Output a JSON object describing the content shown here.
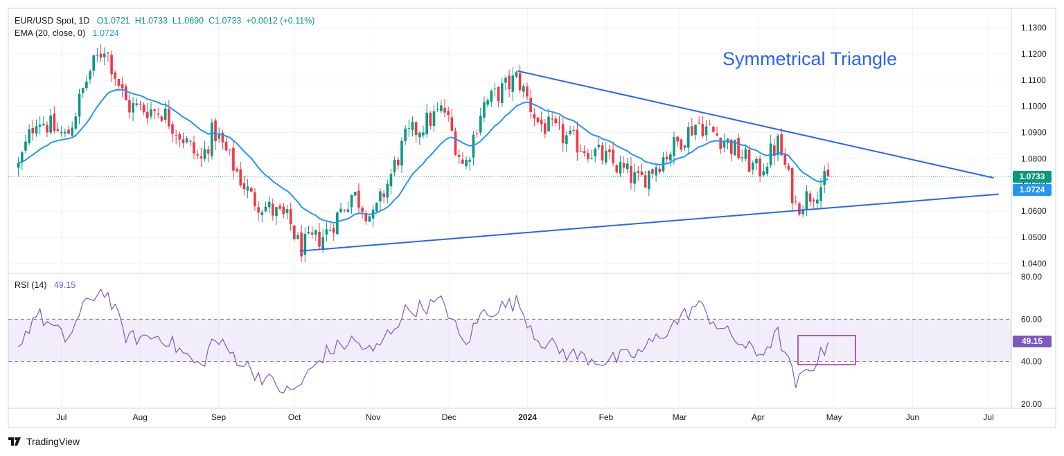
{
  "header": {
    "symbol": "EUR/USD Spot, 1D",
    "open": "O1.0721",
    "high": "H1.0733",
    "low": "L1.0690",
    "close": "C1.0733",
    "change": "+0.0012 (+0.11%)",
    "ema_label": "EMA (20, close, 0)",
    "ema_value": "1.0724",
    "rsi_label": "RSI (14)",
    "rsi_value": "49.15"
  },
  "annotation": "Symmetrical Triangle",
  "branding": "TradingView",
  "price_tags": {
    "last_price": "1.0733",
    "ema": "1.0724",
    "rsi": "49.15"
  },
  "colors": {
    "up": "#089981",
    "down": "#f23645",
    "ema": "#2196f3",
    "rsi": "#7e57c2",
    "trendline": "#2962ff"
  },
  "chart_data": [
    {
      "type": "candlestick",
      "yticks": [
        "1.1300",
        "1.1200",
        "1.1100",
        "1.1000",
        "1.0900",
        "1.0800",
        "1.0700",
        "1.0600",
        "1.0500",
        "1.0400"
      ],
      "ylim": [
        1.035,
        1.135
      ],
      "xticks": [
        "Jul",
        "Aug",
        "Sep",
        "Oct",
        "Nov",
        "Dec",
        "2024",
        "Feb",
        "Mar",
        "Apr",
        "May",
        "Jun",
        "Jul"
      ],
      "monthly_path": [
        {
          "date": "2023-06-14",
          "close": 1.077
        },
        {
          "date": "2023-06-21",
          "close": 1.096
        },
        {
          "date": "2023-07-03",
          "close": 1.088
        },
        {
          "date": "2023-07-12",
          "close": 1.113
        },
        {
          "date": "2023-07-18",
          "close": 1.123
        },
        {
          "date": "2023-07-27",
          "close": 1.1
        },
        {
          "date": "2023-08-10",
          "close": 1.098
        },
        {
          "date": "2023-08-25",
          "close": 1.079
        },
        {
          "date": "2023-08-30",
          "close": 1.091
        },
        {
          "date": "2023-09-14",
          "close": 1.065
        },
        {
          "date": "2023-09-29",
          "close": 1.056
        },
        {
          "date": "2023-10-03",
          "close": 1.046
        },
        {
          "date": "2023-10-13",
          "close": 1.051
        },
        {
          "date": "2023-10-24",
          "close": 1.067
        },
        {
          "date": "2023-11-01",
          "close": 1.057
        },
        {
          "date": "2023-11-14",
          "close": 1.088
        },
        {
          "date": "2023-11-29",
          "close": 1.099
        },
        {
          "date": "2023-12-07",
          "close": 1.076
        },
        {
          "date": "2023-12-14",
          "close": 1.1
        },
        {
          "date": "2023-12-28",
          "close": 1.111
        },
        {
          "date": "2024-01-05",
          "close": 1.094
        },
        {
          "date": "2024-01-16",
          "close": 1.088
        },
        {
          "date": "2024-02-01",
          "close": 1.08
        },
        {
          "date": "2024-02-14",
          "close": 1.071
        },
        {
          "date": "2024-03-08",
          "close": 1.094
        },
        {
          "date": "2024-03-19",
          "close": 1.087
        },
        {
          "date": "2024-04-01",
          "close": 1.075
        },
        {
          "date": "2024-04-09",
          "close": 1.086
        },
        {
          "date": "2024-04-16",
          "close": 1.062
        },
        {
          "date": "2024-04-30",
          "close": 1.0733
        }
      ],
      "last_close": 1.0733,
      "ema_last": 1.0724,
      "trendlines": [
        {
          "name": "upper",
          "from": {
            "date": "2023-12-28",
            "price": 1.1135
          },
          "to": {
            "date": "2024-07-03",
            "price": 1.0727
          }
        },
        {
          "name": "lower",
          "from": {
            "date": "2023-10-03",
            "price": 1.0448
          },
          "to": {
            "date": "2024-07-05",
            "price": 1.0665
          }
        }
      ]
    },
    {
      "type": "line",
      "yticks": [
        "80.00",
        "60.00",
        "40.00",
        "20.00"
      ],
      "ylim": [
        20,
        80
      ],
      "band": [
        40,
        60
      ],
      "last_value": 49.15,
      "path": [
        {
          "date": "2023-06-14",
          "value": 47
        },
        {
          "date": "2023-06-21",
          "value": 63
        },
        {
          "date": "2023-07-03",
          "value": 50
        },
        {
          "date": "2023-07-12",
          "value": 70
        },
        {
          "date": "2023-07-18",
          "value": 74
        },
        {
          "date": "2023-07-27",
          "value": 51
        },
        {
          "date": "2023-08-10",
          "value": 52
        },
        {
          "date": "2023-08-25",
          "value": 37
        },
        {
          "date": "2023-08-30",
          "value": 51
        },
        {
          "date": "2023-09-14",
          "value": 36
        },
        {
          "date": "2023-09-29",
          "value": 25
        },
        {
          "date": "2023-10-03",
          "value": 29
        },
        {
          "date": "2023-10-13",
          "value": 44
        },
        {
          "date": "2023-10-24",
          "value": 50
        },
        {
          "date": "2023-11-01",
          "value": 44
        },
        {
          "date": "2023-11-14",
          "value": 64
        },
        {
          "date": "2023-11-29",
          "value": 68
        },
        {
          "date": "2023-12-07",
          "value": 47
        },
        {
          "date": "2023-12-14",
          "value": 63
        },
        {
          "date": "2023-12-28",
          "value": 68
        },
        {
          "date": "2024-01-05",
          "value": 51
        },
        {
          "date": "2024-01-16",
          "value": 44
        },
        {
          "date": "2024-02-01",
          "value": 40
        },
        {
          "date": "2024-02-14",
          "value": 44
        },
        {
          "date": "2024-03-08",
          "value": 67
        },
        {
          "date": "2024-03-19",
          "value": 54
        },
        {
          "date": "2024-04-01",
          "value": 43
        },
        {
          "date": "2024-04-09",
          "value": 53
        },
        {
          "date": "2024-04-16",
          "value": 29
        },
        {
          "date": "2024-04-30",
          "value": 49.15
        }
      ]
    }
  ]
}
